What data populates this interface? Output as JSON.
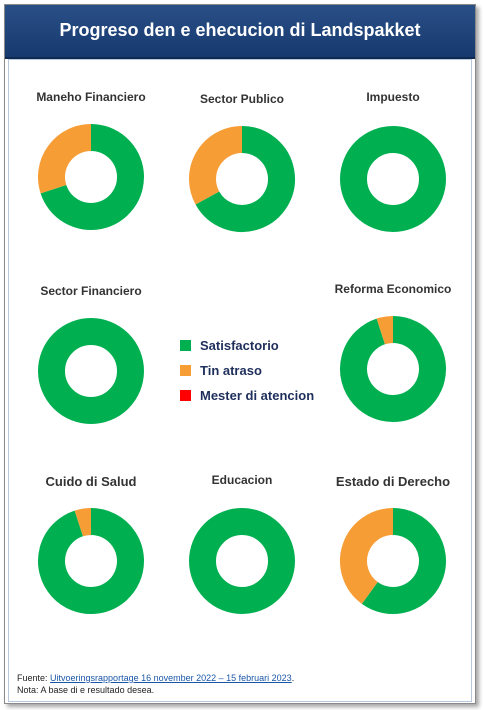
{
  "header": {
    "title": "Progreso den e ehecucion di Landspakket"
  },
  "colors": {
    "satisfactorio": "#00b050",
    "tin_atraso": "#f79d36",
    "mester_di_atencion": "#ff0000"
  },
  "legend": [
    {
      "label": "Satisfactorio",
      "color": "#00b050"
    },
    {
      "label": "Tin atraso",
      "color": "#f79d36"
    },
    {
      "label": "Mester di atencion",
      "color": "#ff0000"
    }
  ],
  "chart_data": [
    {
      "type": "pie",
      "title": "Maneho Financiero",
      "categories": [
        "Satisfactorio",
        "Tin atraso",
        "Mester di atencion"
      ],
      "values": [
        70,
        30,
        0
      ]
    },
    {
      "type": "pie",
      "title": "Sector Publico",
      "categories": [
        "Satisfactorio",
        "Tin atraso",
        "Mester di atencion"
      ],
      "values": [
        67,
        33,
        0
      ]
    },
    {
      "type": "pie",
      "title": "Impuesto",
      "categories": [
        "Satisfactorio",
        "Tin atraso",
        "Mester di atencion"
      ],
      "values": [
        100,
        0,
        0
      ]
    },
    {
      "type": "pie",
      "title": "Sector Financiero",
      "categories": [
        "Satisfactorio",
        "Tin atraso",
        "Mester di atencion"
      ],
      "values": [
        100,
        0,
        0
      ]
    },
    {
      "type": "pie",
      "title": "Reforma Economico",
      "categories": [
        "Satisfactorio",
        "Tin atraso",
        "Mester di atencion"
      ],
      "values": [
        95,
        5,
        0
      ]
    },
    {
      "type": "pie",
      "title": "Cuido di Salud",
      "categories": [
        "Satisfactorio",
        "Tin atraso",
        "Mester di atencion"
      ],
      "values": [
        95,
        5,
        0
      ]
    },
    {
      "type": "pie",
      "title": "Educacion",
      "categories": [
        "Satisfactorio",
        "Tin atraso",
        "Mester di atencion"
      ],
      "values": [
        100,
        0,
        0
      ]
    },
    {
      "type": "pie",
      "title": "Estado di Derecho",
      "categories": [
        "Satisfactorio",
        "Tin atraso",
        "Mester di atencion"
      ],
      "values": [
        60,
        40,
        0
      ]
    }
  ],
  "footer": {
    "source_prefix": "Fuente: ",
    "source_link": "Uitvoeringsrapportage 16 november 2022 – 15 februari 2023",
    "source_suffix": ".",
    "note": "Nota: A base di e resultado desea."
  }
}
